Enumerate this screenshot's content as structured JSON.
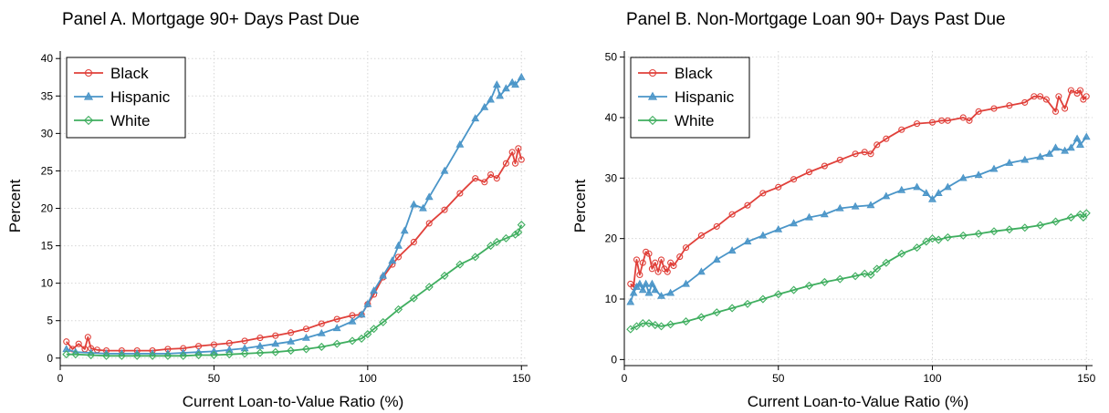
{
  "figure": {
    "colors": {
      "Black": "#e0403a",
      "Hispanic": "#4a95c8",
      "White": "#3fae5f"
    },
    "markers": {
      "Black": "circle",
      "Hispanic": "triangle",
      "White": "diamond"
    }
  },
  "chart_data": [
    {
      "type": "line",
      "title": "Panel A. Mortgage 90+ Days Past Due",
      "xlabel": "Current Loan-to-Value Ratio (%)",
      "ylabel": "Percent",
      "xlim": [
        0,
        152
      ],
      "ylim": [
        -1,
        41
      ],
      "xticks": [
        0,
        50,
        100,
        150
      ],
      "yticks": [
        0,
        5,
        10,
        15,
        20,
        25,
        30,
        35,
        40
      ],
      "grid": true,
      "legend_position": "top-left",
      "series": [
        {
          "name": "Black",
          "x": [
            2,
            4,
            6,
            8,
            9,
            10,
            12,
            15,
            20,
            25,
            30,
            35,
            40,
            45,
            50,
            55,
            60,
            65,
            70,
            75,
            80,
            85,
            90,
            95,
            98,
            100,
            102,
            105,
            108,
            110,
            115,
            120,
            125,
            130,
            135,
            138,
            140,
            142,
            145,
            147,
            148,
            149,
            150
          ],
          "y": [
            2.2,
            1.2,
            1.9,
            1.2,
            2.8,
            1.3,
            1.1,
            1.0,
            1.0,
            1.0,
            1.0,
            1.2,
            1.3,
            1.6,
            1.8,
            2.0,
            2.3,
            2.7,
            3.0,
            3.4,
            3.9,
            4.6,
            5.2,
            5.7,
            5.8,
            7.2,
            8.5,
            10.8,
            12.5,
            13.5,
            15.5,
            18.0,
            19.8,
            22.0,
            24.0,
            23.5,
            24.5,
            24.0,
            26.0,
            27.5,
            26.0,
            28.0,
            26.5
          ]
        },
        {
          "name": "Hispanic",
          "x": [
            2,
            5,
            10,
            15,
            20,
            25,
            30,
            35,
            40,
            45,
            50,
            55,
            60,
            65,
            70,
            75,
            80,
            85,
            90,
            95,
            98,
            100,
            102,
            105,
            108,
            110,
            112,
            115,
            118,
            120,
            125,
            130,
            135,
            138,
            140,
            142,
            143,
            145,
            147,
            148,
            150
          ],
          "y": [
            1.2,
            0.8,
            0.7,
            0.6,
            0.6,
            0.6,
            0.6,
            0.6,
            0.7,
            0.8,
            0.9,
            1.1,
            1.3,
            1.6,
            1.9,
            2.2,
            2.7,
            3.3,
            4.0,
            4.9,
            5.8,
            7.2,
            9.0,
            11.0,
            13.0,
            15.0,
            17.0,
            20.5,
            20.0,
            21.5,
            25.0,
            28.5,
            32.0,
            33.5,
            34.5,
            36.5,
            35.0,
            36.0,
            36.8,
            36.5,
            37.5
          ]
        },
        {
          "name": "White",
          "x": [
            2,
            5,
            10,
            15,
            20,
            25,
            30,
            35,
            40,
            45,
            50,
            55,
            60,
            65,
            70,
            75,
            80,
            85,
            90,
            95,
            98,
            100,
            102,
            105,
            110,
            115,
            120,
            125,
            130,
            135,
            140,
            142,
            145,
            148,
            149,
            150
          ],
          "y": [
            0.5,
            0.5,
            0.4,
            0.3,
            0.3,
            0.3,
            0.3,
            0.3,
            0.3,
            0.4,
            0.4,
            0.5,
            0.6,
            0.7,
            0.8,
            1.0,
            1.2,
            1.5,
            1.9,
            2.3,
            2.6,
            3.2,
            3.9,
            4.8,
            6.5,
            8.0,
            9.5,
            11.0,
            12.5,
            13.5,
            15.0,
            15.5,
            16.0,
            16.5,
            16.8,
            17.8
          ]
        }
      ]
    },
    {
      "type": "line",
      "title": "Panel B. Non-Mortgage Loan 90+ Days Past Due",
      "xlabel": "Current Loan-to-Value Ratio (%)",
      "ylabel": "Percent",
      "xlim": [
        0,
        152
      ],
      "ylim": [
        -1,
        51
      ],
      "xticks": [
        0,
        50,
        100,
        150
      ],
      "yticks": [
        0,
        10,
        20,
        30,
        40,
        50
      ],
      "grid": true,
      "legend_position": "top-left",
      "series": [
        {
          "name": "Black",
          "x": [
            2,
            3,
            4,
            5,
            6,
            7,
            8,
            9,
            10,
            11,
            12,
            13,
            14,
            15,
            16,
            18,
            20,
            25,
            30,
            35,
            40,
            45,
            50,
            55,
            60,
            65,
            70,
            75,
            78,
            80,
            82,
            85,
            90,
            95,
            100,
            103,
            105,
            110,
            112,
            115,
            120,
            125,
            130,
            133,
            135,
            137,
            140,
            141,
            143,
            145,
            147,
            148,
            149,
            150
          ],
          "y": [
            12.5,
            12.0,
            16.5,
            14.0,
            16.0,
            17.8,
            17.5,
            15.0,
            16.0,
            14.5,
            16.5,
            15.0,
            14.5,
            16.0,
            15.5,
            17.0,
            18.5,
            20.5,
            22.0,
            24.0,
            25.5,
            27.5,
            28.5,
            29.8,
            31.0,
            32.0,
            33.0,
            34.0,
            34.3,
            34.0,
            35.5,
            36.5,
            38.0,
            39.0,
            39.2,
            39.5,
            39.5,
            40.0,
            39.5,
            41.0,
            41.5,
            42.0,
            42.5,
            43.5,
            43.5,
            43.0,
            41.0,
            43.5,
            41.5,
            44.5,
            44.0,
            44.5,
            43.0,
            43.5
          ]
        },
        {
          "name": "Hispanic",
          "x": [
            2,
            3,
            4,
            5,
            6,
            7,
            8,
            9,
            10,
            12,
            15,
            20,
            25,
            30,
            35,
            40,
            45,
            50,
            55,
            60,
            65,
            70,
            75,
            80,
            85,
            90,
            95,
            98,
            100,
            102,
            105,
            110,
            115,
            120,
            125,
            130,
            135,
            138,
            140,
            143,
            145,
            147,
            148,
            150
          ],
          "y": [
            9.5,
            11.0,
            12.0,
            12.5,
            11.5,
            12.5,
            11.0,
            12.5,
            11.5,
            10.5,
            11.0,
            12.5,
            14.5,
            16.5,
            18.0,
            19.5,
            20.5,
            21.5,
            22.5,
            23.5,
            24.0,
            25.0,
            25.3,
            25.5,
            27.0,
            28.0,
            28.5,
            27.5,
            26.5,
            27.5,
            28.5,
            30.0,
            30.5,
            31.5,
            32.5,
            33.0,
            33.5,
            34.0,
            35.0,
            34.5,
            35.0,
            36.5,
            35.5,
            36.8
          ]
        },
        {
          "name": "White",
          "x": [
            2,
            4,
            6,
            8,
            10,
            12,
            15,
            20,
            25,
            30,
            35,
            40,
            45,
            50,
            55,
            60,
            65,
            70,
            75,
            78,
            80,
            82,
            85,
            90,
            95,
            98,
            100,
            102,
            105,
            110,
            115,
            120,
            125,
            130,
            135,
            140,
            145,
            148,
            149,
            150
          ],
          "y": [
            5.0,
            5.5,
            6.0,
            6.0,
            5.7,
            5.5,
            5.8,
            6.3,
            7.0,
            7.8,
            8.5,
            9.2,
            10.0,
            10.8,
            11.5,
            12.2,
            12.8,
            13.3,
            13.8,
            14.2,
            14.0,
            15.0,
            16.0,
            17.5,
            18.5,
            19.5,
            20.0,
            19.8,
            20.2,
            20.5,
            20.8,
            21.2,
            21.5,
            21.8,
            22.2,
            22.8,
            23.5,
            24.0,
            23.5,
            24.2
          ]
        }
      ]
    }
  ]
}
